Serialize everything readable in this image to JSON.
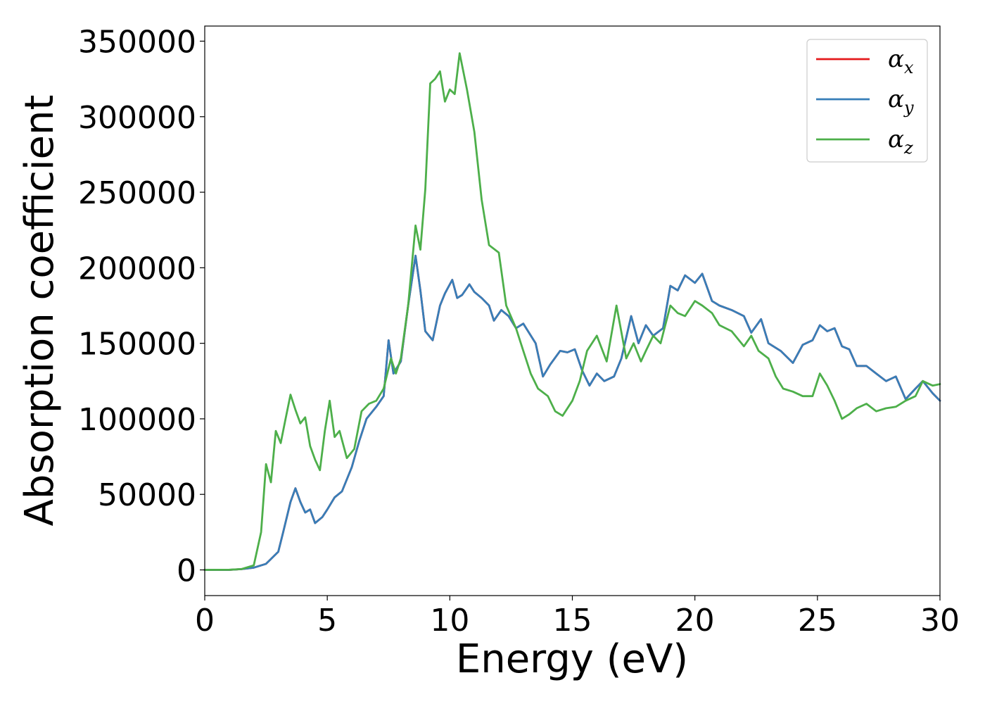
{
  "chart_data": {
    "type": "line",
    "xlabel": "Energy (eV)",
    "ylabel": "Absorption coefficient",
    "xlim": [
      0,
      30
    ],
    "ylim": [
      -17000,
      360000
    ],
    "xticks": [
      0,
      5,
      10,
      15,
      20,
      25,
      30
    ],
    "xtick_labels": [
      "0",
      "5",
      "10",
      "15",
      "20",
      "25",
      "30"
    ],
    "yticks": [
      0,
      50000,
      100000,
      150000,
      200000,
      250000,
      300000,
      350000
    ],
    "ytick_labels": [
      "0",
      "50000",
      "100000",
      "150000",
      "200000",
      "250000",
      "300000",
      "350000"
    ],
    "grid": false,
    "legend_position": "top-right",
    "series": [
      {
        "name": "α_x",
        "legend_base": "α",
        "legend_sub": "x",
        "color": "#e41a1c",
        "x": [
          0,
          1,
          1.5,
          2,
          2.5,
          3,
          3.2,
          3.5,
          3.7,
          3.9,
          4.1,
          4.3,
          4.5,
          4.8,
          5,
          5.3,
          5.6,
          6,
          6.3,
          6.6,
          7,
          7.3,
          7.5,
          7.7,
          8,
          8.3,
          8.6,
          8.8,
          9,
          9.3,
          9.6,
          9.8,
          10.1,
          10.3,
          10.5,
          10.8,
          11,
          11.3,
          11.6,
          11.8,
          12.1,
          12.4,
          12.7,
          13,
          13.5,
          13.8,
          14.1,
          14.5,
          14.8,
          15.1,
          15.4,
          15.7,
          16,
          16.3,
          16.7,
          17,
          17.4,
          17.7,
          18,
          18.3,
          18.7,
          19,
          19.3,
          19.6,
          20,
          20.3,
          20.7,
          21,
          21.5,
          22,
          22.3,
          22.7,
          23,
          23.5,
          24,
          24.4,
          24.8,
          25.1,
          25.4,
          25.7,
          26,
          26.3,
          26.6,
          27,
          27.4,
          27.8,
          28.2,
          28.6,
          29,
          29.3,
          29.7,
          30
        ],
        "y": [
          0,
          0,
          500,
          1500,
          4000,
          12000,
          25000,
          45000,
          54000,
          45000,
          38000,
          40000,
          31000,
          35000,
          40000,
          48000,
          52000,
          68000,
          85000,
          100000,
          108000,
          115000,
          152000,
          130000,
          138000,
          175000,
          208000,
          185000,
          158000,
          152000,
          175000,
          183000,
          192000,
          180000,
          182000,
          189000,
          184000,
          180000,
          175000,
          165000,
          172000,
          168000,
          160000,
          163000,
          150000,
          128000,
          136000,
          145000,
          144000,
          146000,
          132000,
          122000,
          130000,
          125000,
          128000,
          140000,
          168000,
          150000,
          162000,
          155000,
          160000,
          188000,
          185000,
          195000,
          190000,
          196000,
          178000,
          175000,
          172000,
          168000,
          157000,
          166000,
          150000,
          145000,
          137000,
          149000,
          152000,
          162000,
          158000,
          160000,
          148000,
          146000,
          135000,
          135000,
          130000,
          125000,
          128000,
          113000,
          120000,
          125000,
          117000,
          112000
        ]
      },
      {
        "name": "α_y",
        "legend_base": "α",
        "legend_sub": "y",
        "color": "#377eb8",
        "x": [
          0,
          1,
          1.5,
          2,
          2.5,
          3,
          3.2,
          3.5,
          3.7,
          3.9,
          4.1,
          4.3,
          4.5,
          4.8,
          5,
          5.3,
          5.6,
          6,
          6.3,
          6.6,
          7,
          7.3,
          7.5,
          7.7,
          8,
          8.3,
          8.6,
          8.8,
          9,
          9.3,
          9.6,
          9.8,
          10.1,
          10.3,
          10.5,
          10.8,
          11,
          11.3,
          11.6,
          11.8,
          12.1,
          12.4,
          12.7,
          13,
          13.5,
          13.8,
          14.1,
          14.5,
          14.8,
          15.1,
          15.4,
          15.7,
          16,
          16.3,
          16.7,
          17,
          17.4,
          17.7,
          18,
          18.3,
          18.7,
          19,
          19.3,
          19.6,
          20,
          20.3,
          20.7,
          21,
          21.5,
          22,
          22.3,
          22.7,
          23,
          23.5,
          24,
          24.4,
          24.8,
          25.1,
          25.4,
          25.7,
          26,
          26.3,
          26.6,
          27,
          27.4,
          27.8,
          28.2,
          28.6,
          29,
          29.3,
          29.7,
          30
        ],
        "y": [
          0,
          0,
          500,
          1500,
          4000,
          12000,
          25000,
          45000,
          54000,
          45000,
          38000,
          40000,
          31000,
          35000,
          40000,
          48000,
          52000,
          68000,
          85000,
          100000,
          108000,
          115000,
          152000,
          130000,
          138000,
          175000,
          208000,
          185000,
          158000,
          152000,
          175000,
          183000,
          192000,
          180000,
          182000,
          189000,
          184000,
          180000,
          175000,
          165000,
          172000,
          168000,
          160000,
          163000,
          150000,
          128000,
          136000,
          145000,
          144000,
          146000,
          132000,
          122000,
          130000,
          125000,
          128000,
          140000,
          168000,
          150000,
          162000,
          155000,
          160000,
          188000,
          185000,
          195000,
          190000,
          196000,
          178000,
          175000,
          172000,
          168000,
          157000,
          166000,
          150000,
          145000,
          137000,
          149000,
          152000,
          162000,
          158000,
          160000,
          148000,
          146000,
          135000,
          135000,
          130000,
          125000,
          128000,
          113000,
          120000,
          125000,
          117000,
          112000
        ]
      },
      {
        "name": "α_z",
        "legend_base": "α",
        "legend_sub": "z",
        "color": "#4daf4a",
        "x": [
          0,
          1,
          1.5,
          2,
          2.3,
          2.5,
          2.7,
          2.9,
          3.1,
          3.3,
          3.5,
          3.7,
          3.9,
          4.1,
          4.3,
          4.5,
          4.7,
          4.9,
          5.1,
          5.3,
          5.5,
          5.8,
          6.1,
          6.4,
          6.7,
          7,
          7.3,
          7.6,
          7.8,
          8,
          8.3,
          8.6,
          8.8,
          9,
          9.2,
          9.4,
          9.6,
          9.8,
          10,
          10.2,
          10.4,
          10.7,
          11,
          11.3,
          11.6,
          12,
          12.3,
          12.7,
          13,
          13.3,
          13.6,
          14,
          14.3,
          14.6,
          15,
          15.3,
          15.6,
          16,
          16.4,
          16.8,
          17.2,
          17.5,
          17.8,
          18,
          18.3,
          18.6,
          19,
          19.3,
          19.6,
          20,
          20.3,
          20.7,
          21,
          21.5,
          22,
          22.3,
          22.6,
          23,
          23.3,
          23.6,
          24,
          24.4,
          24.8,
          25.1,
          25.4,
          25.7,
          26,
          26.3,
          26.6,
          27,
          27.4,
          27.8,
          28.2,
          28.6,
          29,
          29.3,
          29.7,
          30
        ],
        "y": [
          0,
          100,
          500,
          3000,
          25000,
          70000,
          58000,
          92000,
          84000,
          100000,
          116000,
          106000,
          97000,
          101000,
          82000,
          73000,
          66000,
          92000,
          112000,
          88000,
          92000,
          74000,
          80000,
          105000,
          110000,
          112000,
          120000,
          140000,
          130000,
          140000,
          175000,
          228000,
          212000,
          252000,
          322000,
          325000,
          330000,
          310000,
          318000,
          315000,
          342000,
          318000,
          290000,
          245000,
          215000,
          210000,
          175000,
          160000,
          145000,
          130000,
          120000,
          115000,
          105000,
          102000,
          112000,
          125000,
          145000,
          155000,
          138000,
          175000,
          140000,
          150000,
          138000,
          145000,
          155000,
          150000,
          175000,
          170000,
          168000,
          178000,
          175000,
          170000,
          162000,
          158000,
          148000,
          155000,
          145000,
          140000,
          128000,
          120000,
          118000,
          115000,
          115000,
          130000,
          122000,
          112000,
          100000,
          103000,
          107000,
          110000,
          105000,
          107000,
          108000,
          112000,
          115000,
          125000,
          122000,
          123000
        ]
      }
    ]
  }
}
